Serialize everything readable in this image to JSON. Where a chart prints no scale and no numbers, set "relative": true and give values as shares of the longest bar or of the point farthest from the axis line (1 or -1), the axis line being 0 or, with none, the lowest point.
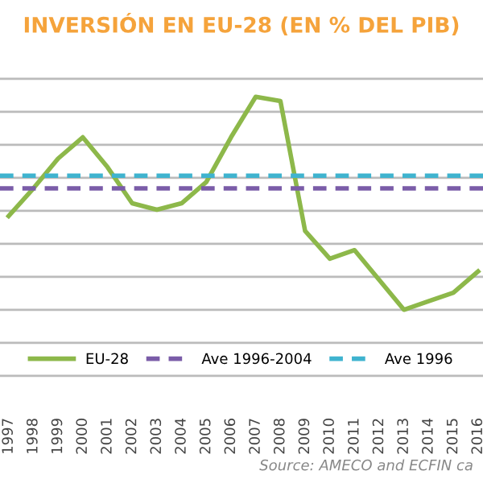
{
  "chart_data": {
    "type": "line",
    "title": "INVERSIÓN EN EU-28 (EN % DEL PIB)",
    "relative": true,
    "categories": [
      "1997",
      "1998",
      "1999",
      "2000",
      "2001",
      "2002",
      "2003",
      "2004",
      "2005",
      "2006",
      "2007",
      "2008",
      "2009",
      "2010",
      "2011",
      "2012",
      "2013",
      "2014",
      "2015",
      "2016"
    ],
    "series": [
      {
        "name": "EU-28",
        "color": "#8db84a",
        "values": [
          0.44,
          0.57,
          0.71,
          0.81,
          0.67,
          0.5,
          0.47,
          0.5,
          0.6,
          0.81,
          1.0,
          0.98,
          0.37,
          0.24,
          0.28,
          0.14,
          0,
          0.04,
          0.08,
          0.18
        ]
      }
    ],
    "ref_lines": [
      {
        "axis": "y",
        "value": 0.57,
        "label": "Ave 1996-2004",
        "color": "#7a5ca8",
        "line_style": "dashed"
      },
      {
        "axis": "y",
        "value": 0.63,
        "label": "Ave 1996",
        "color": "#3fb3cf",
        "line_style": "dashed"
      }
    ],
    "annotations": [
      "Source: AMECO and ECFIN ca"
    ],
    "grid": "y",
    "legend": "bottom",
    "line_style": "solid",
    "marker": "none"
  }
}
